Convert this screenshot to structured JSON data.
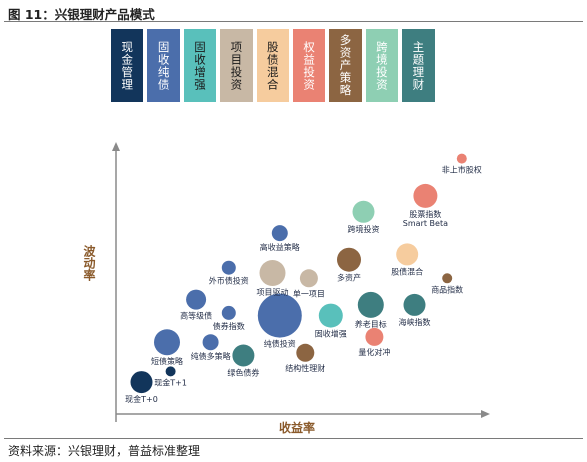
{
  "figure_title": "图 11：兴银理财产品模式",
  "source_note": "资料来源：兴银理财，普益标准整理",
  "header_cells": [
    {
      "label": "现金管理",
      "bg": "#12355b",
      "fg": "#ffffff"
    },
    {
      "label": "固收纯债",
      "bg": "#4b6eab",
      "fg": "#ffffff"
    },
    {
      "label": "固收增强",
      "bg": "#59c0bb",
      "fg": "#1a1a1a"
    },
    {
      "label": "项目投资",
      "bg": "#c8b8a5",
      "fg": "#1a1a1a"
    },
    {
      "label": "股债混合",
      "bg": "#f6cc9e",
      "fg": "#1a1a1a"
    },
    {
      "label": "权益投资",
      "bg": "#ea8273",
      "fg": "#ffffff"
    },
    {
      "label": "多资产策略",
      "bg": "#8c6542",
      "fg": "#ffffff"
    },
    {
      "label": "跨境投资",
      "bg": "#8ecfb3",
      "fg": "#ffffff"
    },
    {
      "label": "主题理财",
      "bg": "#3e7e80",
      "fg": "#ffffff"
    }
  ],
  "chart_data": {
    "type": "scatter",
    "xlabel": "收益率",
    "ylabel": "波动率",
    "points": [
      {
        "label": "现金T+0",
        "x": 0.07,
        "y": 0.12,
        "r": 11,
        "color": "#12355b"
      },
      {
        "label": "现金T+1",
        "x": 0.15,
        "y": 0.16,
        "r": 5,
        "color": "#12355b"
      },
      {
        "label": "短债策略",
        "x": 0.14,
        "y": 0.27,
        "r": 13,
        "color": "#4b6eab"
      },
      {
        "label": "纯债多策略",
        "x": 0.26,
        "y": 0.27,
        "r": 8,
        "color": "#4b6eab"
      },
      {
        "label": "高等级债",
        "x": 0.22,
        "y": 0.43,
        "r": 10,
        "color": "#4b6eab"
      },
      {
        "label": "外币债投资",
        "x": 0.31,
        "y": 0.55,
        "r": 7,
        "color": "#4b6eab"
      },
      {
        "label": "债券指数",
        "x": 0.31,
        "y": 0.38,
        "r": 7,
        "color": "#4b6eab"
      },
      {
        "label": "绿色债券",
        "x": 0.35,
        "y": 0.22,
        "r": 11,
        "color": "#3e7e80"
      },
      {
        "label": "纯债投资",
        "x": 0.45,
        "y": 0.37,
        "r": 22,
        "color": "#4b6eab"
      },
      {
        "label": "项目驱动",
        "x": 0.43,
        "y": 0.53,
        "r": 13,
        "color": "#c8b8a5"
      },
      {
        "label": "单一项目",
        "x": 0.53,
        "y": 0.51,
        "r": 9,
        "color": "#c8b8a5"
      },
      {
        "label": "高收益策略",
        "x": 0.45,
        "y": 0.68,
        "r": 8,
        "color": "#4b6eab"
      },
      {
        "label": "结构性理财",
        "x": 0.52,
        "y": 0.23,
        "r": 9,
        "color": "#8c6542"
      },
      {
        "label": "固收增强",
        "x": 0.59,
        "y": 0.37,
        "r": 12,
        "color": "#59c0bb"
      },
      {
        "label": "多资产",
        "x": 0.64,
        "y": 0.58,
        "r": 12,
        "color": "#8c6542"
      },
      {
        "label": "养老目标",
        "x": 0.7,
        "y": 0.41,
        "r": 13,
        "color": "#3e7e80"
      },
      {
        "label": "量化对冲",
        "x": 0.71,
        "y": 0.29,
        "r": 9,
        "color": "#ea8273"
      },
      {
        "label": "跨境投资",
        "x": 0.68,
        "y": 0.76,
        "r": 11,
        "color": "#8ecfb3"
      },
      {
        "label": "海峡指数",
        "x": 0.82,
        "y": 0.41,
        "r": 11,
        "color": "#3e7e80"
      },
      {
        "label": "股债混合",
        "x": 0.8,
        "y": 0.6,
        "r": 11,
        "color": "#f6cc9e"
      },
      {
        "label": "商品指数",
        "x": 0.91,
        "y": 0.51,
        "r": 5,
        "color": "#8c6542"
      },
      {
        "label": "股票指数 Smart Beta",
        "x": 0.85,
        "y": 0.82,
        "r": 12,
        "color": "#ea8273"
      },
      {
        "label": "非上市股权",
        "x": 0.95,
        "y": 0.96,
        "r": 5,
        "color": "#ea8273"
      }
    ]
  }
}
